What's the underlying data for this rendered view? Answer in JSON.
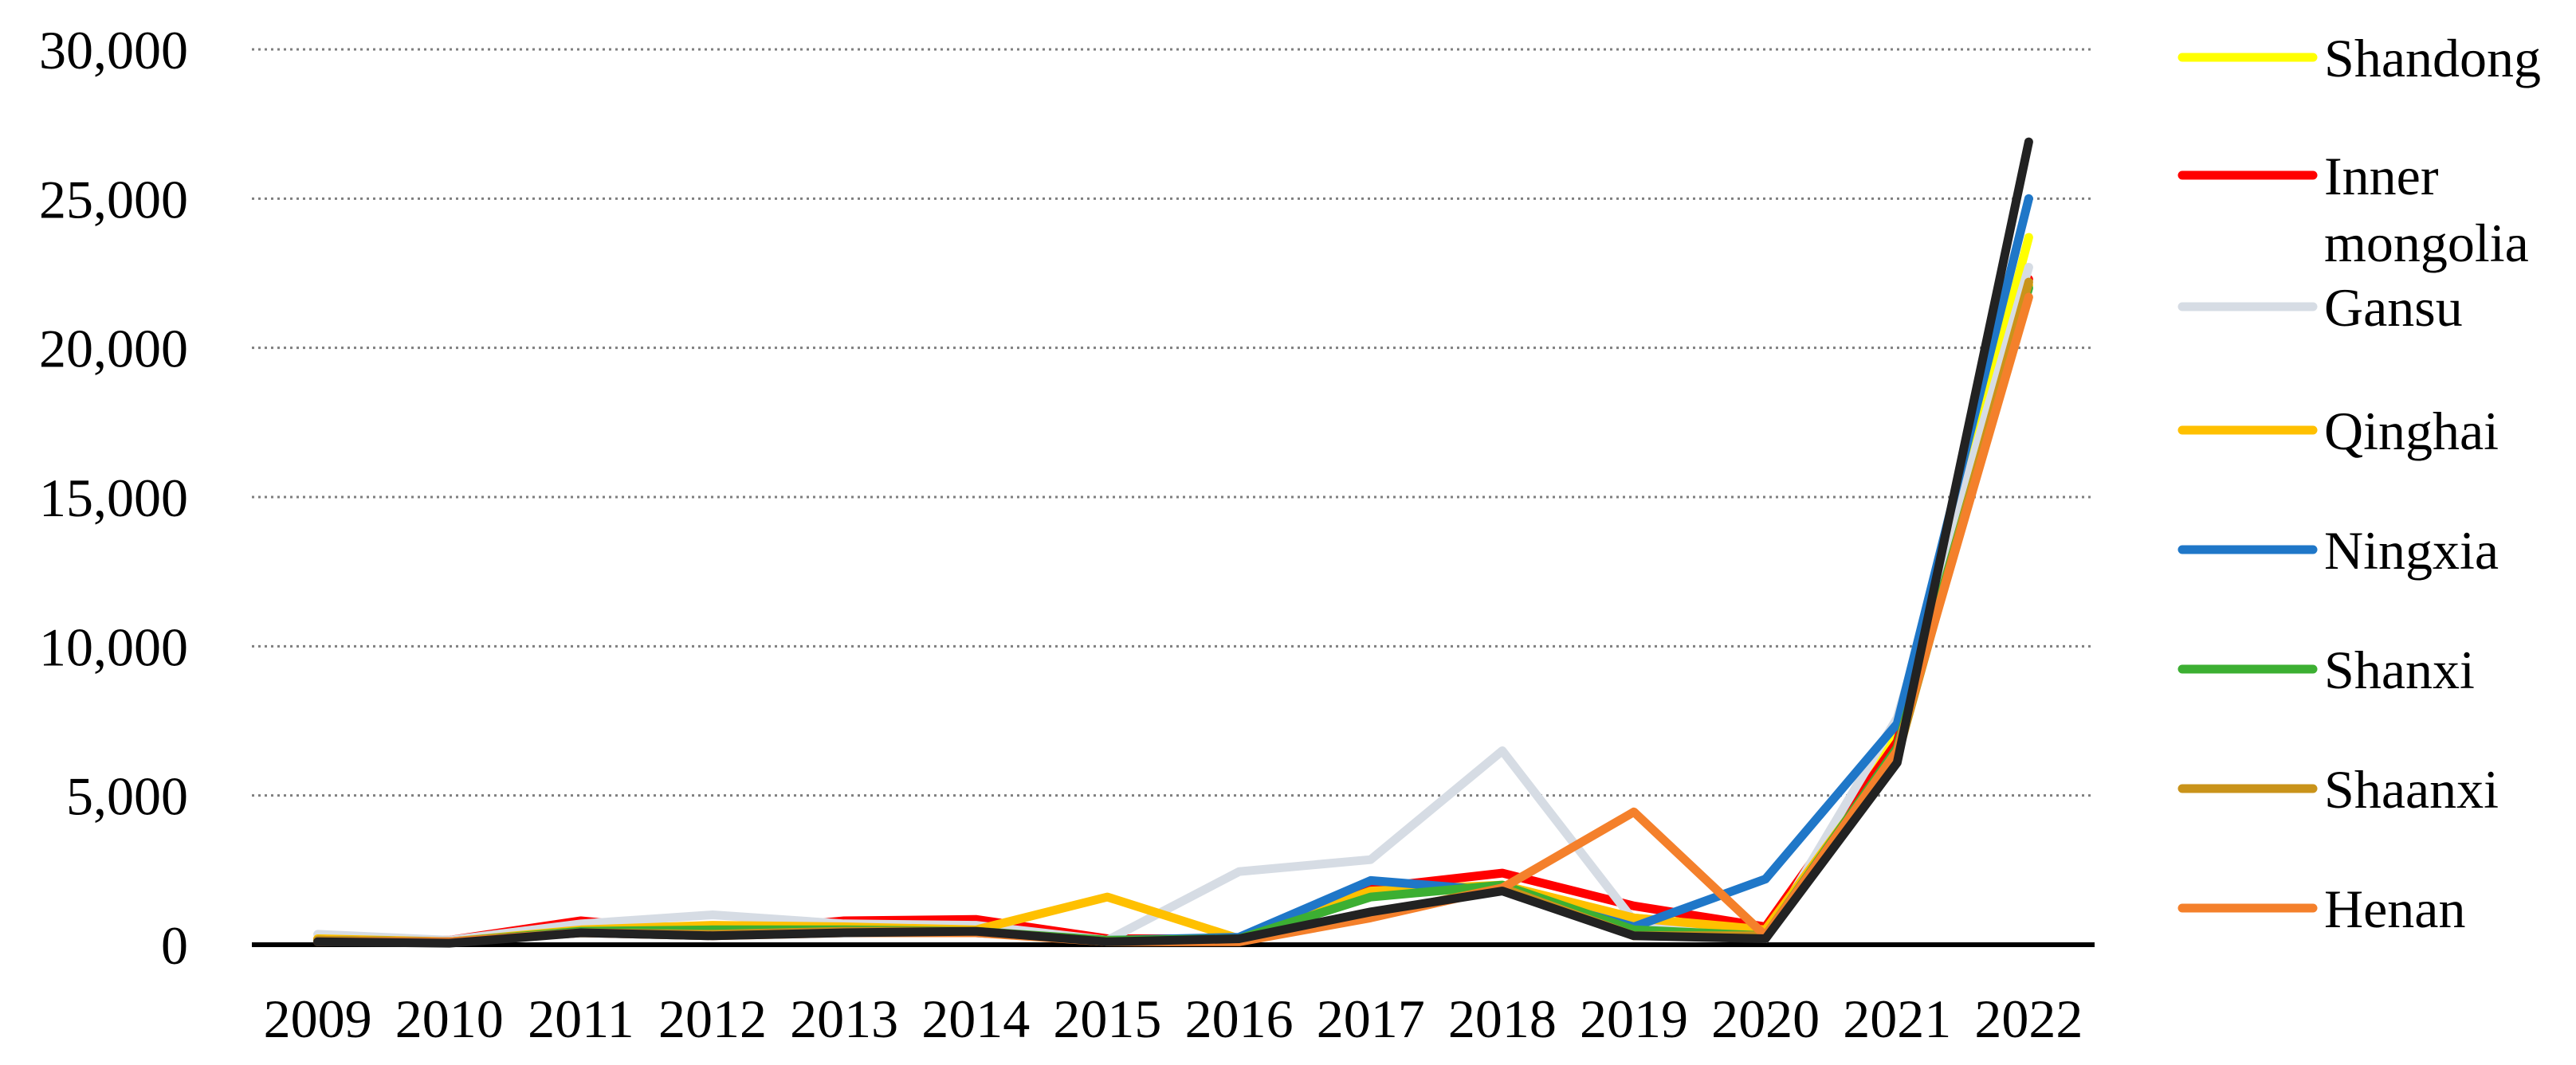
{
  "chart_data": {
    "type": "line",
    "title": "",
    "xlabel": "",
    "ylabel": "",
    "categories": [
      "2009",
      "2010",
      "2011",
      "2012",
      "2013",
      "2014",
      "2015",
      "2016",
      "2017",
      "2018",
      "2019",
      "2020",
      "2021",
      "2022"
    ],
    "ylim": [
      0,
      30000
    ],
    "yticks": [
      0,
      5000,
      10000,
      15000,
      20000,
      25000,
      30000
    ],
    "ytick_labels": [
      "0",
      "5,000",
      "10,000",
      "15,000",
      "20,000",
      "25,000",
      "30,000"
    ],
    "grid": "horizontal dotted",
    "legend_position": "right",
    "series": [
      {
        "name": "Shandong",
        "color": "#FFFF00",
        "values": [
          150,
          100,
          600,
          600,
          550,
          600,
          150,
          150,
          1800,
          1900,
          900,
          500,
          7000,
          23700
        ]
      },
      {
        "name": "Inner mongolia",
        "color": "#FF0000",
        "values": [
          200,
          150,
          800,
          400,
          800,
          850,
          200,
          200,
          1900,
          2400,
          1300,
          600,
          6800,
          22300
        ]
      },
      {
        "name": "Gansu",
        "color": "#D6DCE4",
        "values": [
          350,
          150,
          700,
          1000,
          700,
          650,
          150,
          2450,
          2850,
          6500,
          800,
          200,
          7600,
          22700
        ]
      },
      {
        "name": "Qinghai",
        "color": "#FFC000",
        "values": [
          200,
          100,
          500,
          650,
          600,
          500,
          1600,
          200,
          1800,
          2000,
          900,
          500,
          6500,
          22100
        ]
      },
      {
        "name": "Ningxia",
        "color": "#1F77C8",
        "values": [
          150,
          100,
          400,
          300,
          450,
          400,
          150,
          250,
          2150,
          1800,
          600,
          2200,
          7400,
          25000
        ]
      },
      {
        "name": "Shanxi",
        "color": "#3CAF32",
        "values": [
          150,
          100,
          450,
          500,
          500,
          450,
          150,
          200,
          1600,
          2000,
          500,
          300,
          6600,
          22000
        ]
      },
      {
        "name": "Shaanxi",
        "color": "#C9931A",
        "values": [
          150,
          100,
          400,
          350,
          450,
          450,
          100,
          150,
          1000,
          1900,
          300,
          300,
          6300,
          22200
        ]
      },
      {
        "name": "Henan",
        "color": "#F4802B",
        "values": [
          100,
          100,
          400,
          300,
          400,
          400,
          100,
          100,
          900,
          1900,
          4450,
          300,
          6500,
          21700
        ]
      },
      {
        "name": "",
        "color": "#222222",
        "values": [
          100,
          50,
          400,
          300,
          400,
          450,
          100,
          200,
          1100,
          1800,
          300,
          200,
          6100,
          26900
        ]
      }
    ]
  }
}
